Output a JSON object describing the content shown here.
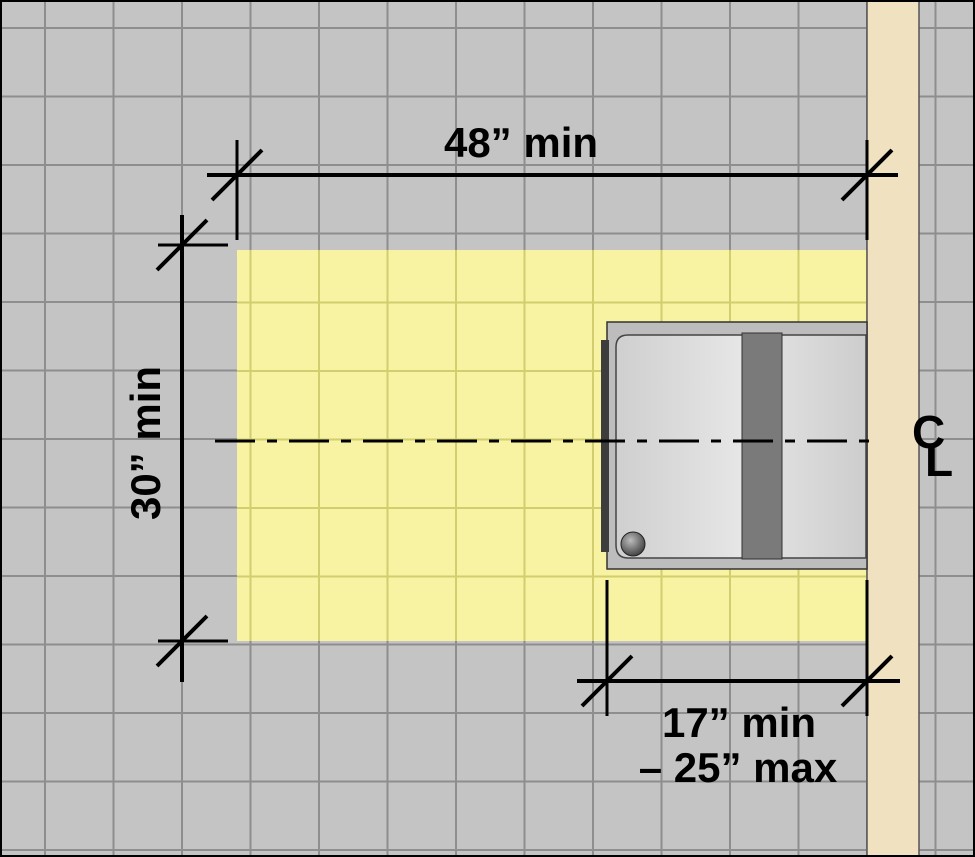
{
  "colors": {
    "floor": "#c4c4c4",
    "grid": "#8e8e8e",
    "clear_floor": "#f7f3a2",
    "clear_floor_grid": "#d2cd6e",
    "partition": "#f0e2c0",
    "fixture": "#d9d9d9",
    "fixture_bar": "#7a7a7a",
    "line": "#000000"
  },
  "dimensions": {
    "width_label": "48” min",
    "depth_label": "30” min",
    "offset_label_line1": "17” min",
    "offset_label_line2": "– 25” max"
  },
  "centerline": {
    "label_c": "C",
    "label_l": "L"
  }
}
